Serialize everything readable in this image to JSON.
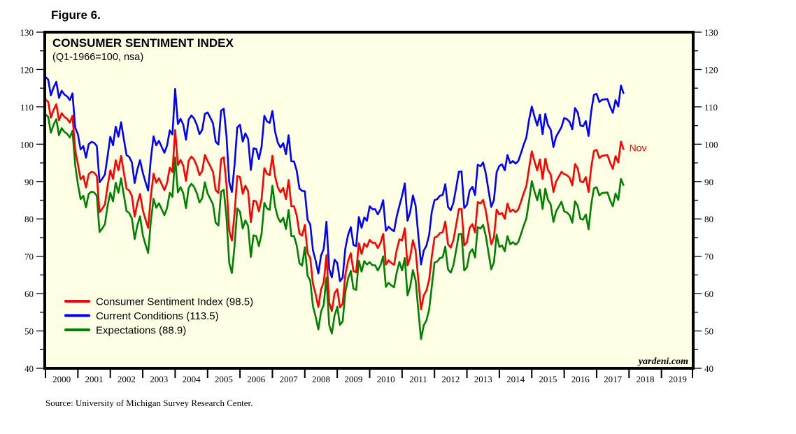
{
  "figure_label": "Figure 6.",
  "source": "Source: University of Michigan Survey Research Center.",
  "watermark": "yardeni.com",
  "chart_data": {
    "type": "line",
    "title": "CONSUMER SENTIMENT INDEX",
    "subtitle": "(Q1-1966=100, nsa)",
    "xlabel": "",
    "ylabel": "",
    "ylim": [
      40,
      130
    ],
    "yticks": [
      40,
      50,
      60,
      70,
      80,
      90,
      100,
      110,
      120,
      130
    ],
    "xlim": [
      2000,
      2020
    ],
    "xticks": [
      "2000",
      "2001",
      "2002",
      "2003",
      "2004",
      "2005",
      "2006",
      "2007",
      "2008",
      "2009",
      "2010",
      "2011",
      "2012",
      "2013",
      "2014",
      "2015",
      "2016",
      "2017",
      "2018",
      "2019"
    ],
    "x_start": "2000-01",
    "x_frequency": "monthly",
    "grid": false,
    "legend_position": "bottom-left",
    "end_annotation": "Nov",
    "colors": {
      "background": "#ffffe6",
      "sentiment": "#ff0000",
      "current": "#0000ff",
      "expectations": "#008000"
    },
    "series": [
      {
        "name": "Consumer Sentiment Index (98.5)",
        "key": "sentiment",
        "values": [
          112.0,
          111.3,
          107.1,
          109.2,
          110.7,
          106.4,
          108.3,
          107.3,
          106.8,
          105.8,
          107.6,
          98.4,
          94.7,
          90.6,
          91.5,
          88.4,
          92.0,
          92.6,
          92.4,
          91.5,
          81.8,
          82.7,
          83.9,
          88.8,
          93.0,
          90.7,
          95.7,
          93.0,
          96.9,
          92.4,
          88.1,
          87.6,
          86.1,
          80.6,
          84.2,
          86.7,
          82.4,
          79.9,
          77.6,
          86.0,
          92.1,
          89.7,
          90.9,
          89.3,
          87.7,
          89.6,
          93.7,
          92.6,
          103.8,
          94.4,
          95.8,
          94.2,
          90.2,
          95.6,
          96.7,
          95.9,
          94.2,
          91.7,
          92.8,
          97.1,
          95.5,
          94.1,
          92.6,
          87.7,
          86.9,
          96.0,
          96.5,
          89.1,
          76.9,
          74.2,
          81.6,
          91.5,
          91.2,
          86.7,
          88.9,
          87.4,
          79.1,
          84.9,
          84.7,
          82.0,
          85.4,
          93.6,
          92.1,
          91.7,
          96.9,
          91.3,
          88.4,
          87.1,
          88.3,
          85.3,
          90.4,
          83.4,
          83.4,
          80.9,
          76.1,
          75.5,
          78.4,
          70.8,
          69.5,
          62.6,
          59.8,
          56.4,
          61.2,
          63.0,
          70.3,
          57.6,
          55.3,
          60.1,
          61.2,
          56.3,
          57.3,
          65.1,
          68.7,
          70.8,
          66.0,
          65.7,
          73.5,
          70.6,
          73.4,
          72.5,
          74.4,
          73.6,
          73.6,
          72.2,
          73.6,
          76.0,
          67.8,
          68.9,
          68.2,
          67.7,
          71.6,
          74.5,
          74.2,
          77.5,
          67.5,
          69.8,
          74.3,
          71.5,
          63.7,
          55.8,
          59.5,
          60.8,
          63.7,
          69.9,
          75.0,
          75.3,
          76.2,
          76.4,
          79.3,
          73.2,
          72.3,
          74.3,
          78.3,
          82.6,
          82.7,
          72.9,
          73.8,
          77.6,
          78.6,
          76.4,
          84.5,
          84.1,
          85.1,
          82.1,
          77.5,
          73.2,
          75.1,
          82.5,
          81.2,
          81.6,
          80.0,
          84.1,
          81.9,
          82.5,
          81.8,
          82.5,
          84.6,
          86.9,
          88.8,
          93.6,
          98.1,
          95.4,
          93.0,
          95.9,
          90.7,
          96.1,
          93.1,
          91.9,
          87.2,
          90.0,
          91.3,
          92.6,
          92.0,
          91.7,
          91.0,
          89.0,
          94.7,
          93.5,
          90.0,
          89.8,
          91.2,
          87.2,
          93.8,
          98.2,
          98.5,
          96.3,
          96.9,
          97.0,
          97.1,
          95.0,
          93.4,
          96.8,
          95.1,
          100.7,
          98.5
        ]
      },
      {
        "name": "Current Conditions (113.5)",
        "key": "current",
        "values": [
          118.0,
          117.3,
          113.1,
          115.2,
          116.7,
          112.4,
          114.3,
          113.3,
          112.8,
          111.8,
          113.6,
          104.4,
          102.7,
          98.6,
          99.5,
          96.4,
          100.0,
          100.6,
          100.4,
          99.5,
          89.8,
          90.7,
          91.9,
          96.8,
          102.0,
          99.7,
          104.7,
          102.0,
          105.9,
          101.4,
          97.1,
          96.6,
          95.1,
          89.6,
          93.2,
          95.7,
          92.4,
          89.9,
          87.6,
          96.0,
          102.1,
          99.7,
          100.9,
          99.3,
          97.7,
          99.6,
          103.7,
          102.6,
          114.8,
          105.4,
          106.8,
          105.2,
          101.2,
          106.6,
          107.7,
          106.9,
          105.2,
          102.7,
          103.8,
          108.1,
          108.5,
          107.1,
          105.6,
          100.7,
          99.9,
          109.0,
          109.5,
          102.1,
          89.9,
          87.2,
          94.6,
          104.5,
          105.2,
          100.7,
          102.9,
          101.4,
          93.1,
          98.9,
          98.7,
          96.0,
          99.4,
          107.6,
          106.1,
          105.7,
          108.9,
          103.3,
          100.4,
          99.1,
          100.3,
          97.3,
          102.4,
          95.4,
          95.4,
          92.9,
          88.1,
          87.5,
          87.4,
          79.8,
          78.5,
          71.6,
          68.8,
          65.4,
          70.2,
          72.0,
          79.3,
          66.6,
          64.3,
          69.1,
          68.2,
          63.3,
          64.3,
          72.1,
          75.7,
          77.8,
          73.0,
          72.7,
          80.5,
          77.6,
          80.4,
          79.5,
          83.4,
          82.6,
          82.6,
          81.2,
          82.6,
          85.0,
          76.8,
          77.9,
          77.2,
          76.7,
          80.6,
          83.5,
          86.2,
          89.5,
          79.5,
          81.8,
          86.3,
          83.5,
          75.7,
          67.8,
          71.5,
          72.8,
          75.7,
          81.9,
          85.0,
          85.3,
          86.2,
          86.4,
          89.3,
          83.2,
          82.3,
          84.3,
          88.3,
          92.6,
          92.7,
          82.9,
          83.8,
          87.6,
          88.6,
          86.4,
          94.5,
          94.1,
          95.1,
          92.1,
          87.5,
          83.2,
          85.1,
          92.5,
          94.2,
          94.6,
          93.0,
          97.1,
          94.9,
          95.5,
          94.8,
          95.5,
          97.6,
          99.9,
          101.8,
          106.6,
          110.1,
          107.4,
          105.0,
          107.9,
          102.7,
          108.1,
          105.1,
          103.9,
          99.2,
          102.0,
          103.3,
          104.6,
          107.0,
          106.7,
          106.0,
          104.0,
          109.7,
          108.5,
          105.0,
          104.8,
          106.2,
          102.2,
          108.8,
          113.2,
          113.5,
          111.3,
          111.9,
          112.0,
          112.1,
          110.0,
          108.4,
          111.8,
          110.1,
          115.7,
          113.5
        ]
      },
      {
        "name": "Expectations (88.9)",
        "key": "expectations",
        "values": [
          108.0,
          107.3,
          103.1,
          105.2,
          106.7,
          102.4,
          104.3,
          103.3,
          102.8,
          101.8,
          103.6,
          94.4,
          89.4,
          85.3,
          86.2,
          83.1,
          86.7,
          87.3,
          87.1,
          86.2,
          76.5,
          77.4,
          78.6,
          83.5,
          87.0,
          84.7,
          89.7,
          87.0,
          90.9,
          86.4,
          82.1,
          81.6,
          80.1,
          74.6,
          78.2,
          80.7,
          75.7,
          73.2,
          70.9,
          79.3,
          85.4,
          83.0,
          84.2,
          82.6,
          81.0,
          82.9,
          87.0,
          85.9,
          96.5,
          87.1,
          88.5,
          86.9,
          82.9,
          88.3,
          89.4,
          88.6,
          86.9,
          84.4,
          85.5,
          89.8,
          86.8,
          85.4,
          83.9,
          79.0,
          78.2,
          87.3,
          87.8,
          80.4,
          68.2,
          65.5,
          72.9,
          82.8,
          81.9,
          77.4,
          79.6,
          78.1,
          69.8,
          75.6,
          75.4,
          72.7,
          76.1,
          84.3,
          82.8,
          82.4,
          88.9,
          83.3,
          80.4,
          79.1,
          80.3,
          77.3,
          82.4,
          75.4,
          75.4,
          72.9,
          68.1,
          67.5,
          72.4,
          64.8,
          63.5,
          56.6,
          53.8,
          50.4,
          55.2,
          57.0,
          64.3,
          51.6,
          49.3,
          54.1,
          56.5,
          51.6,
          52.6,
          60.4,
          64.0,
          66.1,
          61.3,
          61.0,
          68.8,
          65.9,
          68.7,
          67.8,
          68.4,
          67.6,
          67.6,
          66.2,
          67.6,
          70.0,
          61.8,
          62.9,
          62.2,
          61.7,
          65.6,
          68.5,
          66.2,
          69.5,
          59.5,
          61.8,
          66.3,
          63.5,
          55.7,
          47.8,
          51.5,
          52.8,
          55.7,
          61.9,
          68.3,
          68.6,
          69.5,
          69.7,
          72.6,
          66.5,
          65.6,
          67.6,
          71.6,
          75.9,
          76.0,
          66.2,
          67.1,
          70.9,
          71.9,
          69.7,
          77.8,
          77.4,
          78.4,
          75.4,
          70.8,
          66.5,
          68.4,
          75.8,
          72.5,
          72.9,
          71.3,
          75.4,
          73.2,
          73.8,
          73.1,
          73.8,
          75.9,
          78.2,
          80.1,
          84.9,
          90.1,
          87.4,
          85.0,
          87.9,
          82.7,
          88.1,
          85.1,
          83.9,
          79.2,
          82.0,
          83.3,
          84.6,
          82.0,
          81.7,
          81.0,
          79.0,
          84.7,
          83.5,
          80.0,
          79.8,
          81.2,
          77.2,
          83.8,
          88.2,
          88.5,
          86.3,
          86.9,
          87.0,
          87.1,
          85.0,
          83.4,
          86.8,
          85.1,
          90.7,
          88.9
        ]
      }
    ]
  }
}
